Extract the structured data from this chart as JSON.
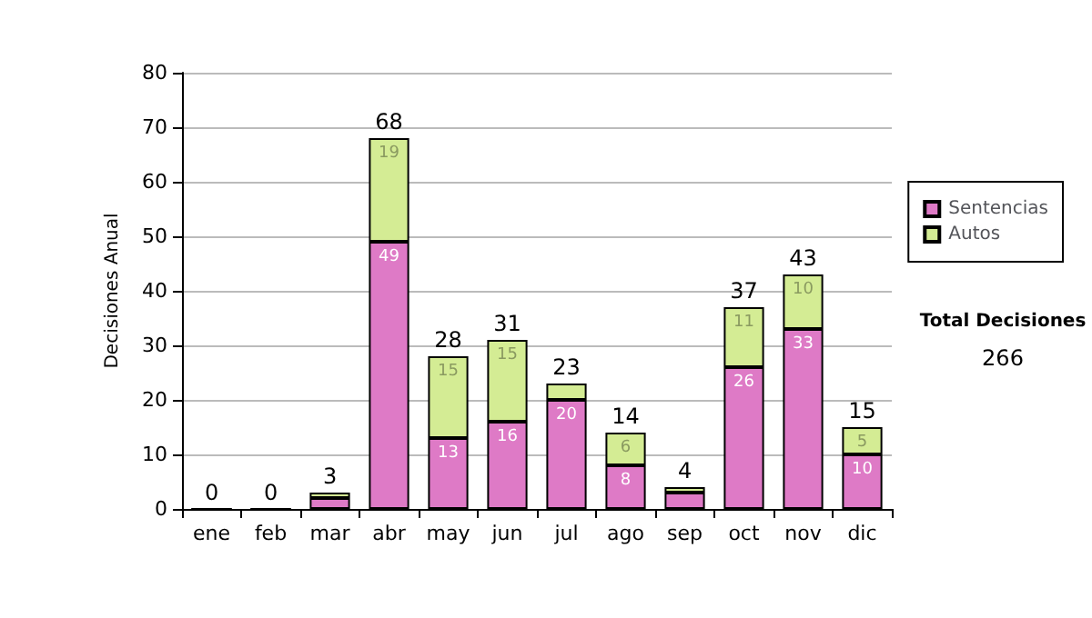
{
  "chart_data": {
    "type": "bar",
    "stacked": true,
    "ylabel": "Decisiones Anual",
    "categories": [
      "ene",
      "feb",
      "mar",
      "abr",
      "may",
      "jun",
      "jul",
      "ago",
      "sep",
      "oct",
      "nov",
      "dic"
    ],
    "series": [
      {
        "name": "Sentencias",
        "color": "#de7ac6",
        "values": [
          0,
          0,
          2,
          49,
          13,
          16,
          20,
          8,
          3,
          26,
          33,
          10
        ],
        "value_labels": [
          null,
          null,
          null,
          "49",
          "13",
          "16",
          "20",
          "8",
          null,
          "26",
          "33",
          "10"
        ]
      },
      {
        "name": "Autos",
        "color": "#d4ec94",
        "values": [
          0,
          0,
          1,
          19,
          15,
          15,
          3,
          6,
          1,
          11,
          10,
          5
        ],
        "value_labels": [
          null,
          null,
          null,
          "19",
          "15",
          "15",
          null,
          "6",
          null,
          "11",
          "10",
          "5"
        ]
      }
    ],
    "totals": [
      "0",
      "0",
      "3",
      "68",
      "28",
      "31",
      "23",
      "14",
      "4",
      "37",
      "43",
      "15"
    ],
    "ylim": [
      0,
      80
    ],
    "yticks": [
      0,
      10,
      20,
      30,
      40,
      50,
      60,
      70,
      80
    ],
    "grid": "y",
    "legend": "right",
    "annotations": [
      "Total Decisiones",
      "266"
    ]
  }
}
